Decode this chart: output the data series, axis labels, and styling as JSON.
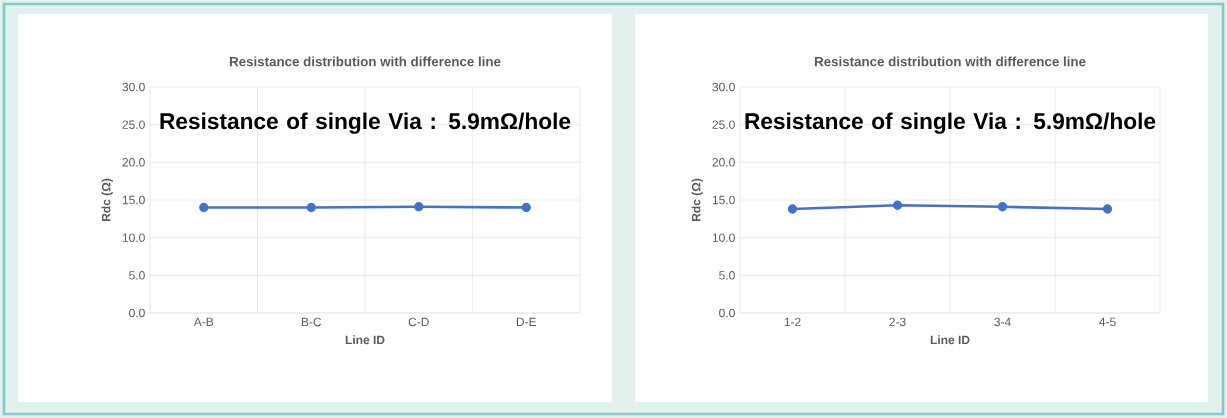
{
  "chart_data": [
    {
      "type": "line",
      "title": "Resistance distribution with difference line",
      "xlabel": "Line ID",
      "ylabel": "Rdc (Ω)",
      "categories": [
        "A-B",
        "B-C",
        "C-D",
        "D-E"
      ],
      "series": [
        {
          "color": "#4472c4",
          "values": [
            14.0,
            14.0,
            14.1,
            14.0
          ]
        }
      ],
      "ylim": [
        0,
        30
      ],
      "yticks": [
        {
          "value": 0,
          "label": "0.0"
        },
        {
          "value": 5,
          "label": "5.0"
        },
        {
          "value": 10,
          "label": "10.0"
        },
        {
          "value": 15,
          "label": "15.0"
        },
        {
          "value": 20,
          "label": "20.0"
        },
        {
          "value": 25,
          "label": "25.0"
        },
        {
          "value": 30,
          "label": "30.0"
        }
      ],
      "grid": true,
      "marker": "circle",
      "annotations": [
        "Resistance of single Via : 5.9mΩ/hole"
      ]
    },
    {
      "type": "line",
      "title": "Resistance distribution with difference line",
      "xlabel": "Line ID",
      "ylabel": "Rdc (Ω)",
      "categories": [
        "1-2",
        "2-3",
        "3-4",
        "4-5"
      ],
      "series": [
        {
          "color": "#4472c4",
          "values": [
            13.8,
            14.3,
            14.1,
            13.8
          ]
        }
      ],
      "ylim": [
        0,
        30
      ],
      "yticks": [
        {
          "value": 0,
          "label": "0.0"
        },
        {
          "value": 5,
          "label": "5.0"
        },
        {
          "value": 10,
          "label": "10.0"
        },
        {
          "value": 15,
          "label": "15.0"
        },
        {
          "value": 20,
          "label": "20.0"
        },
        {
          "value": 25,
          "label": "25.0"
        },
        {
          "value": 30,
          "label": "30.0"
        }
      ],
      "grid": true,
      "marker": "circle",
      "annotations": [
        "Resistance of single Via : 5.9mΩ/hole"
      ]
    }
  ]
}
